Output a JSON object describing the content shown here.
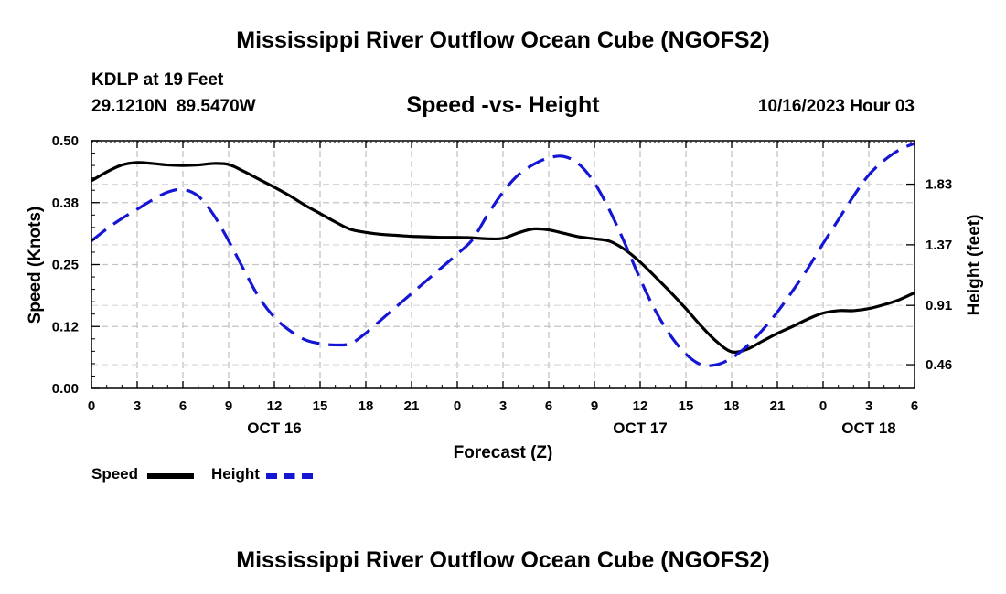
{
  "header": {
    "main_title": "Mississippi River Outflow Ocean Cube (NGOFS2)",
    "station": "KDLP at 19 Feet",
    "coords": "29.1210N  89.5470W",
    "subtitle": "Speed -vs- Height",
    "timestamp": "10/16/2023 Hour 03"
  },
  "footer": {
    "main_title": "Mississippi River Outflow Ocean Cube (NGOFS2)"
  },
  "legend": {
    "speed_label": "Speed",
    "height_label": "Height"
  },
  "chart_data": {
    "type": "line",
    "title": "Speed -vs- Height",
    "xlabel": "Forecast (Z)",
    "ylabel": "Speed (Knots)",
    "y2label": "Height (feet)",
    "x_range": [
      0,
      54
    ],
    "ylim": [
      0,
      0.5
    ],
    "y2lim": [
      0.28,
      2.16
    ],
    "y_ticks": [
      0.0,
      0.125,
      0.25,
      0.375,
      0.5
    ],
    "y_tick_labels": [
      "0.00",
      "0.12",
      "0.25",
      "0.38",
      "0.50"
    ],
    "y2_ticks": [
      0.46,
      0.91,
      1.37,
      1.83
    ],
    "y2_tick_labels": [
      "0.46",
      "0.91",
      "1.37",
      "1.83"
    ],
    "x_ticks": [
      0,
      3,
      6,
      9,
      12,
      15,
      18,
      21,
      24,
      27,
      30,
      33,
      36,
      39,
      42,
      45,
      48,
      51,
      54
    ],
    "x_tick_labels": [
      "0",
      "3",
      "6",
      "9",
      "12",
      "15",
      "18",
      "21",
      "0",
      "3",
      "6",
      "9",
      "12",
      "15",
      "18",
      "21",
      "0",
      "3",
      "6"
    ],
    "date_labels": [
      {
        "x": 12,
        "label": "OCT 16"
      },
      {
        "x": 36,
        "label": "OCT 17"
      },
      {
        "x": 51,
        "label": "OCT 18"
      }
    ],
    "grid": true,
    "legend_placement": "bottom-left",
    "series": [
      {
        "name": "Speed",
        "axis": "left",
        "color": "#000000",
        "style": "solid",
        "x": [
          0,
          1,
          2,
          3,
          4,
          5,
          6,
          7,
          8,
          9,
          10,
          11,
          12,
          13,
          14,
          15,
          16,
          17,
          18,
          19,
          20,
          21,
          22,
          23,
          24,
          25,
          26,
          27,
          28,
          29,
          30,
          31,
          32,
          33,
          34,
          35,
          36,
          37,
          38,
          39,
          40,
          41,
          42,
          43,
          44,
          45,
          46,
          47,
          48,
          49,
          50,
          51,
          52,
          53,
          54
        ],
        "values": [
          0.419,
          0.437,
          0.451,
          0.456,
          0.454,
          0.451,
          0.45,
          0.451,
          0.454,
          0.452,
          0.438,
          0.422,
          0.406,
          0.389,
          0.37,
          0.353,
          0.336,
          0.321,
          0.315,
          0.311,
          0.309,
          0.307,
          0.306,
          0.305,
          0.305,
          0.304,
          0.302,
          0.303,
          0.314,
          0.322,
          0.32,
          0.313,
          0.306,
          0.302,
          0.297,
          0.28,
          0.255,
          0.225,
          0.194,
          0.161,
          0.126,
          0.095,
          0.074,
          0.079,
          0.095,
          0.111,
          0.125,
          0.14,
          0.152,
          0.157,
          0.157,
          0.161,
          0.169,
          0.179,
          0.193
        ]
      },
      {
        "name": "Height",
        "axis": "right",
        "color": "#1515d4",
        "style": "dashed",
        "x": [
          0,
          1,
          2,
          3,
          4,
          5,
          6,
          7,
          8,
          9,
          10,
          11,
          12,
          13,
          14,
          15,
          16,
          17,
          18,
          19,
          20,
          21,
          22,
          23,
          24,
          25,
          26,
          27,
          28,
          29,
          30,
          31,
          32,
          33,
          34,
          35,
          36,
          37,
          38,
          39,
          40,
          41,
          42,
          43,
          44,
          45,
          46,
          47,
          48,
          49,
          50,
          51,
          52,
          53,
          54
        ],
        "values": [
          1.4,
          1.49,
          1.57,
          1.64,
          1.71,
          1.77,
          1.79,
          1.74,
          1.6,
          1.4,
          1.18,
          0.97,
          0.82,
          0.72,
          0.65,
          0.62,
          0.61,
          0.62,
          0.7,
          0.8,
          0.9,
          1.0,
          1.1,
          1.2,
          1.3,
          1.41,
          1.6,
          1.77,
          1.9,
          1.98,
          2.03,
          2.04,
          1.98,
          1.84,
          1.63,
          1.38,
          1.11,
          0.87,
          0.68,
          0.54,
          0.46,
          0.46,
          0.51,
          0.6,
          0.72,
          0.86,
          1.02,
          1.19,
          1.38,
          1.56,
          1.74,
          1.9,
          2.01,
          2.09,
          2.14
        ]
      }
    ]
  }
}
